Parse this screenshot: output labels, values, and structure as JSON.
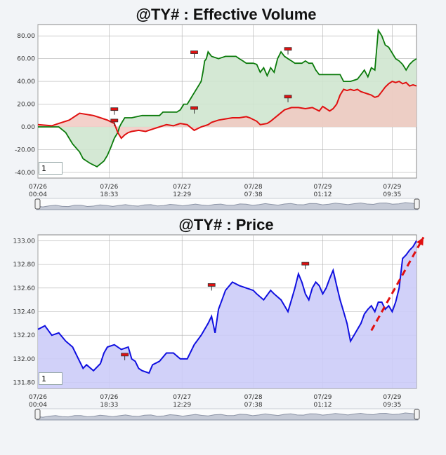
{
  "x_tick_labels": [
    {
      "date": "07/26",
      "time": "00:04"
    },
    {
      "date": "07/26",
      "time": "18:33"
    },
    {
      "date": "07/27",
      "time": "12:29"
    },
    {
      "date": "07/28",
      "time": "07:38"
    },
    {
      "date": "07/29",
      "time": "01:12"
    },
    {
      "date": "07/29",
      "time": "09:35"
    }
  ],
  "colors": {
    "plot_bg": "#ffffff",
    "grid": "#b0b0b0",
    "volume_green": "#0a7a0a",
    "volume_green_fill": "#cfe6cf",
    "volume_red": "#e01010",
    "volume_red_fill": "#f1c9c2",
    "price_line": "#1010e0",
    "price_fill": "#ccccf8",
    "trend_arrow": "#e01010",
    "marker": "#e01010",
    "navigator": "#8c94a6"
  },
  "chart_data": [
    {
      "type": "line",
      "title": "@TY# : Effective Volume",
      "input_value": "1",
      "ylim": [
        -45,
        90
      ],
      "yticks": [
        -40,
        -20,
        0,
        20,
        40,
        60,
        80
      ],
      "ytick_labels": [
        "-40.00",
        "-20.00",
        "0.00",
        "20.00",
        "40.00",
        "60.00",
        "80.00"
      ],
      "grid": true,
      "series": [
        {
          "color": "green",
          "values": [
            [
              0,
              0
            ],
            [
              6,
              0
            ],
            [
              8,
              -5
            ],
            [
              10,
              -15
            ],
            [
              12,
              -22
            ],
            [
              13,
              -28
            ],
            [
              15,
              -32
            ],
            [
              17,
              -35
            ],
            [
              19,
              -30
            ],
            [
              20,
              -25
            ],
            [
              21,
              -18
            ],
            [
              22,
              -10
            ],
            [
              23,
              -5
            ],
            [
              23.5,
              0
            ],
            [
              24,
              3
            ],
            [
              25,
              8
            ],
            [
              27,
              8
            ],
            [
              30,
              10
            ],
            [
              33,
              10
            ],
            [
              35,
              10
            ],
            [
              36,
              13
            ],
            [
              38,
              13
            ],
            [
              39,
              13
            ],
            [
              40,
              13
            ],
            [
              41,
              15
            ],
            [
              42,
              20
            ],
            [
              43,
              20
            ],
            [
              44,
              25
            ],
            [
              45,
              30
            ],
            [
              46,
              35
            ],
            [
              47,
              40
            ],
            [
              47.5,
              48
            ],
            [
              48,
              58
            ],
            [
              48.5,
              60
            ],
            [
              49,
              66
            ],
            [
              50,
              62
            ],
            [
              52,
              60
            ],
            [
              54,
              62
            ],
            [
              55,
              62
            ],
            [
              57,
              62
            ],
            [
              58,
              60
            ],
            [
              59,
              58
            ],
            [
              60,
              56
            ],
            [
              62,
              56
            ],
            [
              63,
              55
            ],
            [
              64,
              48
            ],
            [
              65,
              52
            ],
            [
              66,
              45
            ],
            [
              67,
              52
            ],
            [
              68,
              48
            ],
            [
              69,
              60
            ],
            [
              70,
              66
            ],
            [
              71,
              62
            ],
            [
              72,
              60
            ],
            [
              73,
              58
            ],
            [
              74,
              56
            ],
            [
              75,
              56
            ],
            [
              76,
              56
            ],
            [
              77,
              58
            ],
            [
              78,
              56
            ],
            [
              79,
              56
            ],
            [
              80,
              50
            ],
            [
              81,
              46
            ],
            [
              82,
              46
            ],
            [
              83,
              46
            ],
            [
              84,
              46
            ],
            [
              85,
              46
            ],
            [
              86,
              46
            ],
            [
              87,
              46
            ],
            [
              88,
              40
            ],
            [
              90,
              40
            ],
            [
              92,
              42
            ],
            [
              93,
              46
            ],
            [
              94,
              50
            ],
            [
              95,
              44
            ],
            [
              96,
              52
            ],
            [
              97,
              50
            ],
            [
              98,
              85
            ],
            [
              99,
              80
            ],
            [
              100,
              72
            ],
            [
              101,
              70
            ],
            [
              102,
              65
            ],
            [
              103,
              60
            ],
            [
              104,
              58
            ],
            [
              105,
              55
            ],
            [
              106,
              50
            ],
            [
              107,
              55
            ],
            [
              108,
              58
            ],
            [
              109,
              60
            ]
          ]
        },
        {
          "color": "red",
          "values": [
            [
              0,
              2
            ],
            [
              4,
              1
            ],
            [
              6,
              3
            ],
            [
              9,
              6
            ],
            [
              12,
              12
            ],
            [
              14,
              11
            ],
            [
              16,
              10
            ],
            [
              18,
              8
            ],
            [
              20,
              6
            ],
            [
              22,
              3
            ],
            [
              23,
              -5
            ],
            [
              24,
              -10
            ],
            [
              25,
              -7
            ],
            [
              26,
              -5
            ],
            [
              27,
              -4
            ],
            [
              29,
              -3
            ],
            [
              31,
              -4
            ],
            [
              33,
              -2
            ],
            [
              35,
              0
            ],
            [
              37,
              2
            ],
            [
              39,
              1
            ],
            [
              41,
              3
            ],
            [
              43,
              2
            ],
            [
              45,
              -3
            ],
            [
              47,
              0
            ],
            [
              49,
              2
            ],
            [
              50,
              4
            ],
            [
              52,
              6
            ],
            [
              54,
              7
            ],
            [
              56,
              8
            ],
            [
              58,
              8
            ],
            [
              60,
              9
            ],
            [
              61,
              8
            ],
            [
              63,
              5
            ],
            [
              64,
              2
            ],
            [
              66,
              3
            ],
            [
              67,
              5
            ],
            [
              69,
              10
            ],
            [
              71,
              15
            ],
            [
              73,
              17
            ],
            [
              75,
              17
            ],
            [
              77,
              16
            ],
            [
              79,
              17
            ],
            [
              81,
              14
            ],
            [
              82,
              18
            ],
            [
              83,
              16
            ],
            [
              84,
              14
            ],
            [
              85,
              16
            ],
            [
              86,
              20
            ],
            [
              87,
              28
            ],
            [
              88,
              33
            ],
            [
              89,
              32
            ],
            [
              90,
              33
            ],
            [
              91,
              32
            ],
            [
              92,
              33
            ],
            [
              93,
              31
            ],
            [
              94,
              30
            ],
            [
              95,
              29
            ],
            [
              96,
              28
            ],
            [
              97,
              26
            ],
            [
              98,
              27
            ],
            [
              99,
              31
            ],
            [
              100,
              35
            ],
            [
              101,
              38
            ],
            [
              102,
              40
            ],
            [
              103,
              39
            ],
            [
              104,
              40
            ],
            [
              105,
              38
            ],
            [
              106,
              39
            ],
            [
              107,
              36
            ],
            [
              108,
              37
            ],
            [
              109,
              36
            ]
          ]
        }
      ]
    },
    {
      "type": "area",
      "title": "@TY# : Price",
      "input_value": "1",
      "ylim": [
        131.75,
        133.05
      ],
      "yticks": [
        131.8,
        132.0,
        132.2,
        132.4,
        132.6,
        132.8,
        133.0
      ],
      "ytick_labels": [
        "131.80",
        "132.00",
        "132.20",
        "132.40",
        "132.60",
        "132.80",
        "133.00"
      ],
      "grid": true,
      "series": [
        {
          "color": "blue",
          "values": [
            [
              0,
              132.25
            ],
            [
              2,
              132.28
            ],
            [
              4,
              132.2
            ],
            [
              6,
              132.22
            ],
            [
              8,
              132.15
            ],
            [
              10,
              132.1
            ],
            [
              12,
              131.98
            ],
            [
              13,
              131.92
            ],
            [
              14,
              131.95
            ],
            [
              16,
              131.9
            ],
            [
              18,
              131.96
            ],
            [
              19,
              132.05
            ],
            [
              20,
              132.1
            ],
            [
              22,
              132.12
            ],
            [
              24,
              132.08
            ],
            [
              26,
              132.1
            ],
            [
              27,
              132.0
            ],
            [
              28,
              131.98
            ],
            [
              29,
              131.92
            ],
            [
              30,
              131.9
            ],
            [
              32,
              131.88
            ],
            [
              33,
              131.95
            ],
            [
              35,
              131.98
            ],
            [
              37,
              132.05
            ],
            [
              39,
              132.05
            ],
            [
              41,
              132.0
            ],
            [
              43,
              132.0
            ],
            [
              45,
              132.12
            ],
            [
              47,
              132.2
            ],
            [
              49,
              132.3
            ],
            [
              50,
              132.36
            ],
            [
              51,
              132.22
            ],
            [
              52,
              132.42
            ],
            [
              53,
              132.5
            ],
            [
              54,
              132.58
            ],
            [
              56,
              132.65
            ],
            [
              58,
              132.62
            ],
            [
              60,
              132.6
            ],
            [
              62,
              132.58
            ],
            [
              63,
              132.55
            ],
            [
              65,
              132.5
            ],
            [
              67,
              132.58
            ],
            [
              68,
              132.55
            ],
            [
              70,
              132.5
            ],
            [
              71,
              132.45
            ],
            [
              72,
              132.4
            ],
            [
              73,
              132.5
            ],
            [
              74,
              132.6
            ],
            [
              75,
              132.72
            ],
            [
              76,
              132.65
            ],
            [
              77,
              132.55
            ],
            [
              78,
              132.5
            ],
            [
              79,
              132.6
            ],
            [
              80,
              132.65
            ],
            [
              81,
              132.62
            ],
            [
              82,
              132.55
            ],
            [
              83,
              132.6
            ],
            [
              84,
              132.68
            ],
            [
              85,
              132.75
            ],
            [
              86,
              132.62
            ],
            [
              87,
              132.5
            ],
            [
              88,
              132.4
            ],
            [
              89,
              132.3
            ],
            [
              90,
              132.15
            ],
            [
              91,
              132.2
            ],
            [
              92,
              132.25
            ],
            [
              93,
              132.3
            ],
            [
              94,
              132.38
            ],
            [
              95,
              132.42
            ],
            [
              96,
              132.45
            ],
            [
              97,
              132.4
            ],
            [
              98,
              132.48
            ],
            [
              99,
              132.48
            ],
            [
              100,
              132.42
            ],
            [
              101,
              132.45
            ],
            [
              102,
              132.4
            ],
            [
              103,
              132.48
            ],
            [
              104,
              132.6
            ],
            [
              105,
              132.85
            ],
            [
              106,
              132.88
            ],
            [
              107,
              132.92
            ],
            [
              108,
              132.95
            ],
            [
              109,
              133.0
            ]
          ]
        }
      ],
      "annotations": [
        {
          "type": "arrow",
          "from": [
            96,
            132.24
          ],
          "to": [
            109,
            133.0
          ],
          "style": "dashed"
        }
      ]
    }
  ]
}
